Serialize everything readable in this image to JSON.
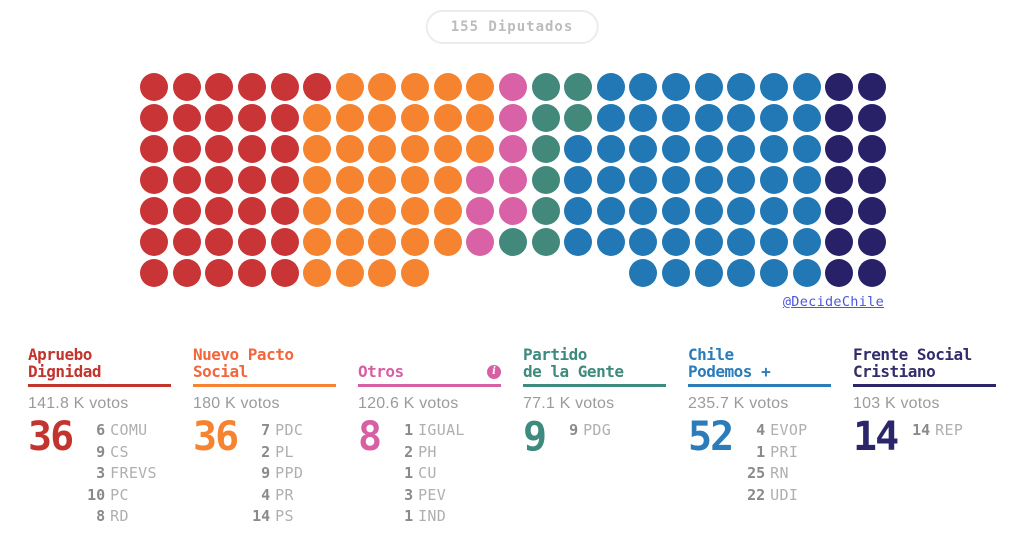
{
  "badge": {
    "label": "155 Diputados"
  },
  "credit": {
    "label": "@DecideChile",
    "color": "#4A55E1"
  },
  "chart_data": {
    "type": "parliament-dot-matrix",
    "title": "155 Diputados",
    "total_seats": 155,
    "layout_hint": {
      "rows": 7,
      "columns": 23,
      "fill_order": "column-major-top-to-bottom",
      "empty_cells": {
        "row": 7,
        "from_col": 10,
        "to_col": 15
      }
    },
    "coalitions": [
      {
        "name": "Apruebo Dignidad",
        "name_lines": [
          "Apruebo",
          "Dignidad"
        ],
        "seats": 36,
        "votes_label": "141.8 K votos",
        "color": "#C4342F",
        "accent": "#C4342F",
        "dot_color": "#C93437",
        "info_icon": false,
        "parties": [
          {
            "seats": 6,
            "abbr": "COMU"
          },
          {
            "seats": 9,
            "abbr": "CS"
          },
          {
            "seats": 3,
            "abbr": "FREVS"
          },
          {
            "seats": 10,
            "abbr": "PC"
          },
          {
            "seats": 8,
            "abbr": "RD"
          }
        ]
      },
      {
        "name": "Nuevo Pacto Social",
        "name_lines": [
          "Nuevo Pacto",
          "Social"
        ],
        "seats": 36,
        "votes_label": "180 K votos",
        "color": "#F3653C",
        "accent": "#F5832F",
        "dot_color": "#F5832F",
        "info_icon": false,
        "parties": [
          {
            "seats": 7,
            "abbr": "PDC"
          },
          {
            "seats": 2,
            "abbr": "PL"
          },
          {
            "seats": 9,
            "abbr": "PPD"
          },
          {
            "seats": 4,
            "abbr": "PR"
          },
          {
            "seats": 14,
            "abbr": "PS"
          }
        ]
      },
      {
        "name": "Otros",
        "name_lines": [
          "Otros"
        ],
        "seats": 8,
        "votes_label": "120.6 K votos",
        "color": "#D75FA3",
        "accent": "#D75FA3",
        "dot_color": "#D961A5",
        "info_icon": true,
        "parties": [
          {
            "seats": 1,
            "abbr": "IGUAL"
          },
          {
            "seats": 2,
            "abbr": "PH"
          },
          {
            "seats": 1,
            "abbr": "CU"
          },
          {
            "seats": 3,
            "abbr": "PEV"
          },
          {
            "seats": 1,
            "abbr": "IND"
          }
        ]
      },
      {
        "name": "Partido de la Gente",
        "name_lines": [
          "Partido",
          "de la Gente"
        ],
        "seats": 9,
        "votes_label": "77.1 K votos",
        "color": "#3E8A7E",
        "accent": "#3E8A7E",
        "dot_color": "#42897C",
        "info_icon": false,
        "parties": [
          {
            "seats": 9,
            "abbr": "PDG"
          }
        ]
      },
      {
        "name": "Chile Podemos +",
        "name_lines": [
          "Chile",
          "Podemos +"
        ],
        "seats": 52,
        "votes_label": "235.7 K votos",
        "color": "#2B7CB9",
        "accent": "#2B7CB9",
        "dot_color": "#2178B4",
        "info_icon": false,
        "parties": [
          {
            "seats": 4,
            "abbr": "EVOP"
          },
          {
            "seats": 1,
            "abbr": "PRI"
          },
          {
            "seats": 25,
            "abbr": "RN"
          },
          {
            "seats": 22,
            "abbr": "UDI"
          }
        ]
      },
      {
        "name": "Frente Social Cristiano",
        "name_lines": [
          "Frente Social",
          "Cristiano"
        ],
        "seats": 14,
        "votes_label": "103 K votos",
        "color": "#332D6B",
        "accent": "#2B2569",
        "dot_color": "#282168",
        "info_icon": false,
        "parties": [
          {
            "seats": 14,
            "abbr": "REP"
          }
        ]
      }
    ]
  }
}
